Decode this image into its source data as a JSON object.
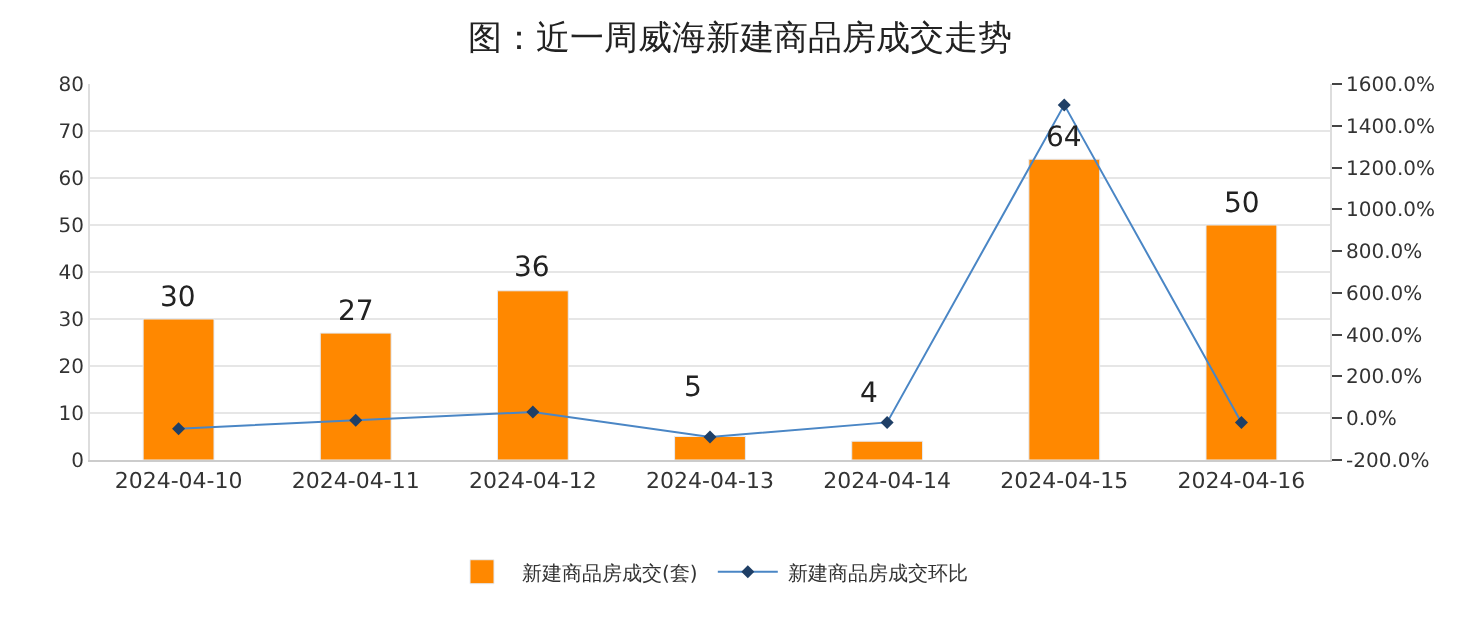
{
  "chart_data": {
    "type": "bar",
    "title": "图：近一周威海新建商品房成交走势",
    "categories": [
      "2024-04-10",
      "2024-04-11",
      "2024-04-12",
      "2024-04-13",
      "2024-04-14",
      "2024-04-15",
      "2024-04-16"
    ],
    "series": [
      {
        "name": "新建商品房成交(套)",
        "color": "#ff8800",
        "values": [
          30,
          27,
          36,
          5,
          4,
          64,
          50
        ],
        "data_labels": true
      },
      {
        "name": "新建商品房成交环比",
        "type": "line",
        "axis": "y2",
        "color": "#4a86c5",
        "marker": "diamond",
        "values": [
          -50,
          -10,
          30,
          -90,
          -20,
          1500,
          -20
        ]
      }
    ],
    "ylim": [
      0,
      80
    ],
    "yticks": [
      0,
      10,
      20,
      30,
      40,
      50,
      60,
      70,
      80
    ],
    "y2lim": [
      -200,
      1600
    ],
    "y2ticks": [
      {
        "value": -200,
        "label": "-200.0%"
      },
      {
        "value": 0,
        "label": "0.0%"
      },
      {
        "value": 200,
        "label": "200.0%"
      },
      {
        "value": 400,
        "label": "400.0%"
      },
      {
        "value": 600,
        "label": "600.0%"
      },
      {
        "value": 800,
        "label": "800.0%"
      },
      {
        "value": 1000,
        "label": "1000.0%"
      },
      {
        "value": 1200,
        "label": "1200.0%"
      },
      {
        "value": 1400,
        "label": "1400.0%"
      },
      {
        "value": 1600,
        "label": "1600.0%"
      }
    ],
    "grid": "y",
    "legend": "bottom"
  }
}
